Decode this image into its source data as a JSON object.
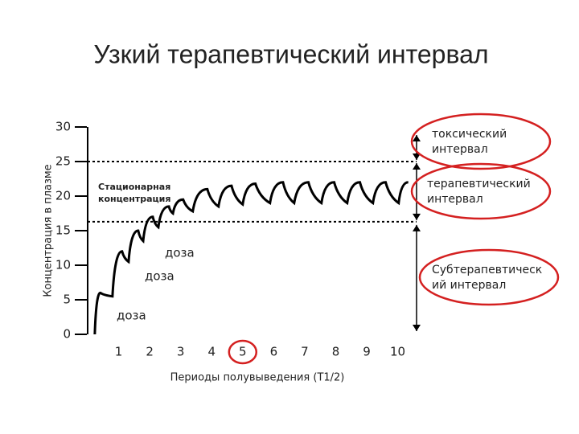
{
  "title": "Узкий терапевтический интервал",
  "chart_data": {
    "type": "line",
    "y_label": "Концентрация в плазме",
    "x_label": "Периоды полувыведения (T1/2)",
    "x": [
      0.23,
      0.41,
      0.8,
      1.11,
      1.32,
      1.63,
      1.79,
      2.1,
      2.28,
      2.62,
      2.75,
      3.08,
      3.39,
      3.86,
      4.22,
      4.64,
      5.0,
      5.41,
      5.88,
      6.3,
      6.66,
      7.12,
      7.54,
      7.95,
      8.37,
      8.78,
      9.2,
      9.61,
      10.03,
      10.34
    ],
    "values": [
      0,
      6,
      5.5,
      12,
      10.5,
      15,
      13.5,
      17,
      15.5,
      18.5,
      17.5,
      19.5,
      17.8,
      21,
      18.5,
      21.5,
      18.8,
      21.8,
      19,
      22,
      19,
      22,
      19,
      22,
      19,
      22,
      19,
      22,
      19,
      22
    ],
    "color": "#000000",
    "xlim": [
      0,
      10.4
    ],
    "ylim": [
      0,
      30
    ],
    "xticks": [
      1,
      2,
      3,
      4,
      5,
      6,
      7,
      8,
      9,
      10
    ],
    "yticks": [
      0,
      5,
      10,
      15,
      20,
      25,
      30
    ],
    "highlight_xtick": 5,
    "reference_lines": [
      25,
      16.3
    ],
    "annotations": [
      "Стационарная концентрация",
      "доза",
      "доза",
      "доза"
    ],
    "intervals": [
      "токсический интервал",
      "терапевтический интервал",
      "Субтерапевтическ ий интервал"
    ],
    "highlight_color": "#d42020"
  }
}
